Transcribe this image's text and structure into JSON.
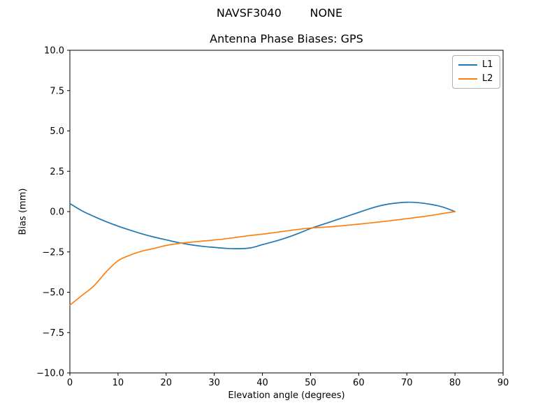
{
  "chart_data": {
    "type": "line",
    "suptitle": "NAVSF3040        NONE",
    "title": "Antenna Phase Biases: GPS",
    "xlabel": "Elevation angle (degrees)",
    "ylabel": "Bias (mm)",
    "xlim": [
      0,
      90
    ],
    "ylim": [
      -10,
      10
    ],
    "grid": false,
    "xticks": [
      {
        "v": 0,
        "label": "0"
      },
      {
        "v": 10,
        "label": "10"
      },
      {
        "v": 20,
        "label": "20"
      },
      {
        "v": 30,
        "label": "30"
      },
      {
        "v": 40,
        "label": "40"
      },
      {
        "v": 50,
        "label": "50"
      },
      {
        "v": 60,
        "label": "60"
      },
      {
        "v": 70,
        "label": "70"
      },
      {
        "v": 80,
        "label": "80"
      },
      {
        "v": 90,
        "label": "90"
      }
    ],
    "yticks": [
      {
        "v": -10,
        "label": "−10.0"
      },
      {
        "v": -7.5,
        "label": "−7.5"
      },
      {
        "v": -5,
        "label": "−5.0"
      },
      {
        "v": -2.5,
        "label": "−2.5"
      },
      {
        "v": 0,
        "label": "0.0"
      },
      {
        "v": 2.5,
        "label": "2.5"
      },
      {
        "v": 5,
        "label": "5.0"
      },
      {
        "v": 7.5,
        "label": "7.5"
      },
      {
        "v": 10,
        "label": "10.0"
      }
    ],
    "legend": {
      "position": "upper right",
      "entries": [
        {
          "label": "L1",
          "color": "#1f77b4"
        },
        {
          "label": "L2",
          "color": "#ff7f0e"
        }
      ]
    },
    "series": [
      {
        "name": "L1",
        "color": "#1f77b4",
        "x": [
          0,
          2.5,
          5,
          7.5,
          10,
          12.5,
          15,
          17.5,
          20,
          22.5,
          25,
          27.5,
          30,
          32.5,
          35,
          37.5,
          40,
          42.5,
          45,
          47.5,
          50,
          52.5,
          55,
          57.5,
          60,
          62.5,
          65,
          67.5,
          70,
          72.5,
          75,
          77.5,
          80
        ],
        "y": [
          0.5,
          0.05,
          -0.3,
          -0.62,
          -0.9,
          -1.15,
          -1.38,
          -1.58,
          -1.75,
          -1.92,
          -2.05,
          -2.15,
          -2.22,
          -2.28,
          -2.3,
          -2.25,
          -2.05,
          -1.85,
          -1.62,
          -1.35,
          -1.05,
          -0.8,
          -0.55,
          -0.3,
          -0.05,
          0.2,
          0.4,
          0.52,
          0.58,
          0.55,
          0.45,
          0.28,
          0.0
        ]
      },
      {
        "name": "L2",
        "color": "#ff7f0e",
        "x": [
          0,
          2.5,
          5,
          7.5,
          10,
          12.5,
          15,
          17.5,
          20,
          22.5,
          25,
          27.5,
          30,
          32.5,
          35,
          37.5,
          40,
          42.5,
          45,
          47.5,
          50,
          52.5,
          55,
          57.5,
          60,
          62.5,
          65,
          67.5,
          70,
          72.5,
          75,
          77.5,
          80
        ],
        "y": [
          -5.8,
          -5.2,
          -4.6,
          -3.75,
          -3.05,
          -2.7,
          -2.45,
          -2.28,
          -2.1,
          -1.98,
          -1.9,
          -1.83,
          -1.76,
          -1.68,
          -1.58,
          -1.48,
          -1.4,
          -1.3,
          -1.2,
          -1.1,
          -1.02,
          -0.97,
          -0.92,
          -0.85,
          -0.78,
          -0.7,
          -0.62,
          -0.53,
          -0.44,
          -0.34,
          -0.24,
          -0.12,
          0.0
        ]
      }
    ]
  }
}
